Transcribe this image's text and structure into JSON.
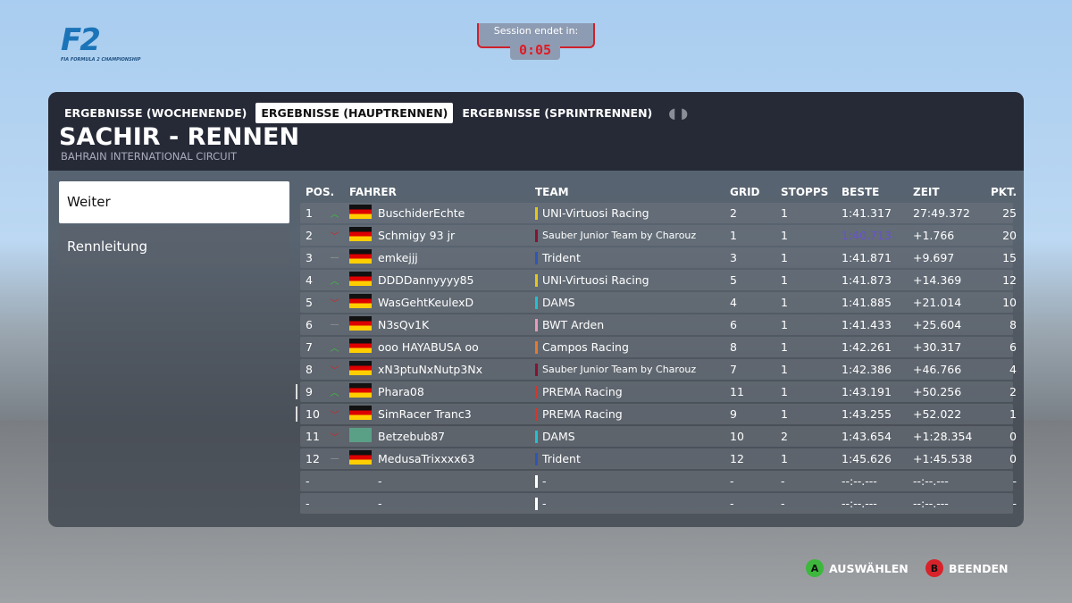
{
  "logo": {
    "text": "F2",
    "subtitle": "FIA FORMULA 2 CHAMPIONSHIP"
  },
  "timer": {
    "label": "Session endet in:",
    "value": "0:05"
  },
  "tabs": [
    {
      "label": "ERGEBNISSE (WOCHENENDE)",
      "active": false
    },
    {
      "label": "ERGEBNISSE (HAUPTRENNEN)",
      "active": true
    },
    {
      "label": "ERGEBNISSE (SPRINTRENNEN)",
      "active": false
    }
  ],
  "header": {
    "title": "SACHIR - RENNEN",
    "circuit": "BAHRAIN INTERNATIONAL CIRCUIT"
  },
  "menu": [
    {
      "label": "Weiter",
      "selected": true
    },
    {
      "label": "Rennleitung",
      "selected": false
    }
  ],
  "columns": [
    "POS.",
    "FAHRER",
    "TEAM",
    "GRID",
    "STOPPS",
    "BESTE",
    "ZEIT",
    "PKT."
  ],
  "rows": [
    {
      "pos": "1",
      "chg": "up",
      "flag": "de",
      "driver": "BuschiderEchte",
      "team": "UNI-Virtuosi Racing",
      "tc": "#e6c619",
      "grid": "2",
      "stops": "1",
      "best": "1:41.317",
      "time": "27:49.372",
      "pts": "25"
    },
    {
      "pos": "2",
      "chg": "down",
      "flag": "de",
      "driver": "Schmigy 93 jr",
      "team": "Sauber Junior Team by Charouz",
      "tc": "#8a1230",
      "grid": "1",
      "stops": "1",
      "best": "1:40.713",
      "fastest": true,
      "time": "+1.766",
      "pts": "20"
    },
    {
      "pos": "3",
      "chg": "same",
      "flag": "de",
      "driver": "emkejjj",
      "team": "Trident",
      "tc": "#2e55b8",
      "grid": "3",
      "stops": "1",
      "best": "1:41.871",
      "time": "+9.697",
      "pts": "15"
    },
    {
      "pos": "4",
      "chg": "up",
      "flag": "de",
      "driver": "DDDDannyyyy85",
      "team": "UNI-Virtuosi Racing",
      "tc": "#e6c619",
      "grid": "5",
      "stops": "1",
      "best": "1:41.873",
      "time": "+14.369",
      "pts": "12"
    },
    {
      "pos": "5",
      "chg": "down",
      "flag": "de",
      "driver": "WasGehtKeulexD",
      "team": "DAMS",
      "tc": "#22c0d0",
      "grid": "4",
      "stops": "1",
      "best": "1:41.885",
      "time": "+21.014",
      "pts": "10"
    },
    {
      "pos": "6",
      "chg": "same",
      "flag": "de",
      "driver": "N3sQv1K",
      "team": "BWT Arden",
      "tc": "#e89ab8",
      "grid": "6",
      "stops": "1",
      "best": "1:41.433",
      "time": "+25.604",
      "pts": "8"
    },
    {
      "pos": "7",
      "chg": "up",
      "flag": "de",
      "driver": "ooo HAYABUSA oo",
      "team": "Campos Racing",
      "tc": "#e8782a",
      "grid": "8",
      "stops": "1",
      "best": "1:42.261",
      "time": "+30.317",
      "pts": "6"
    },
    {
      "pos": "8",
      "chg": "down",
      "flag": "de",
      "driver": "xN3ptuNxNutp3Nx",
      "team": "Sauber Junior Team by Charouz",
      "tc": "#8a1230",
      "grid": "7",
      "stops": "1",
      "best": "1:42.386",
      "time": "+46.766",
      "pts": "4"
    },
    {
      "pos": "9",
      "chg": "up",
      "flag": "de",
      "driver": "Phara08",
      "team": "PREMA Racing",
      "tc": "#d8342a",
      "grid": "11",
      "stops": "1",
      "best": "1:43.191",
      "time": "+50.256",
      "pts": "2",
      "marker": true
    },
    {
      "pos": "10",
      "chg": "down",
      "flag": "de",
      "driver": "SimRacer Tranc3",
      "team": "PREMA Racing",
      "tc": "#d8342a",
      "grid": "9",
      "stops": "1",
      "best": "1:43.255",
      "time": "+52.022",
      "pts": "1",
      "marker": true
    },
    {
      "pos": "11",
      "chg": "down",
      "flag": "world",
      "driver": "Betzebub87",
      "team": "DAMS",
      "tc": "#22c0d0",
      "grid": "10",
      "stops": "2",
      "best": "1:43.654",
      "time": "+1:28.354",
      "pts": "0"
    },
    {
      "pos": "12",
      "chg": "same",
      "flag": "de",
      "driver": "MedusaTrixxxx63",
      "team": "Trident",
      "tc": "#2e55b8",
      "grid": "12",
      "stops": "1",
      "best": "1:45.626",
      "time": "+1:45.538",
      "pts": "0"
    },
    {
      "pos": "-",
      "chg": "",
      "flag": "",
      "driver": "-",
      "team": "-",
      "tc": "#ffffff",
      "grid": "-",
      "stops": "-",
      "best": "--:--.---",
      "time": "--:--.---",
      "pts": "-"
    },
    {
      "pos": "-",
      "chg": "",
      "flag": "",
      "driver": "-",
      "team": "-",
      "tc": "#ffffff",
      "grid": "-",
      "stops": "-",
      "best": "--:--.---",
      "time": "--:--.---",
      "pts": "-"
    }
  ],
  "footer": {
    "select": {
      "key": "A",
      "label": "AUSWÄHLEN",
      "color": "#3db83d"
    },
    "quit": {
      "key": "B",
      "label": "BEENDEN",
      "color": "#d8222a"
    }
  },
  "colors": {
    "fastest_lap": "#6a4fd8",
    "timer": "#e01b24"
  }
}
